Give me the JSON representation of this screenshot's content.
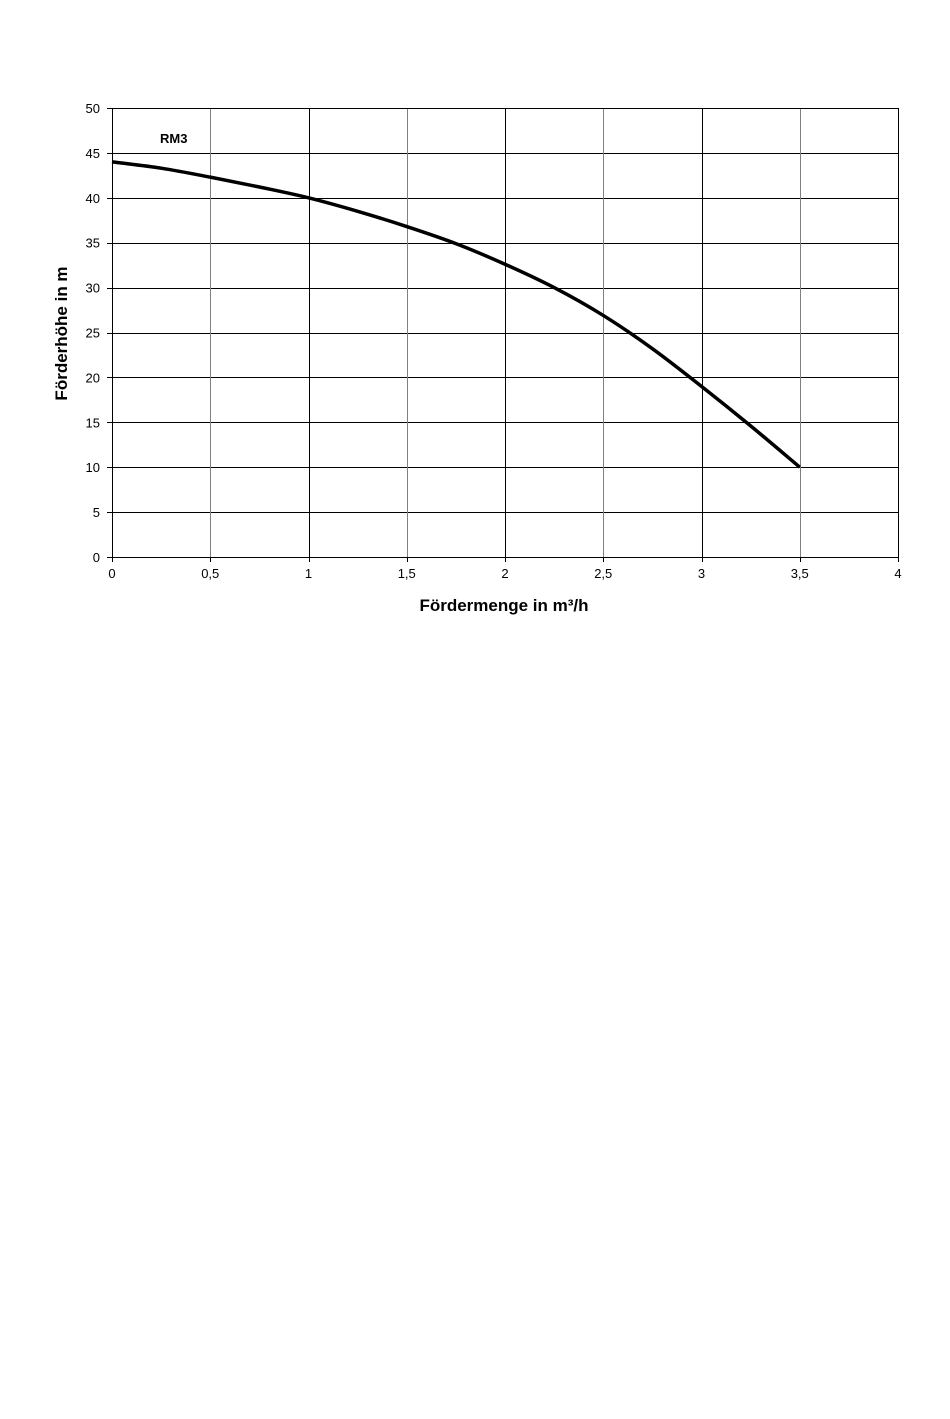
{
  "chart_data": {
    "type": "line",
    "title": "",
    "xlabel": "Fördermenge in m³/h",
    "ylabel": "Förderhöhe in m",
    "xlim": [
      0,
      4
    ],
    "ylim": [
      0,
      50
    ],
    "x_ticks": [
      "0",
      "0,5",
      "1",
      "1,5",
      "2",
      "2,5",
      "3",
      "3,5",
      "4"
    ],
    "y_ticks": [
      "0",
      "5",
      "10",
      "15",
      "20",
      "25",
      "30",
      "35",
      "40",
      "45",
      "50"
    ],
    "grid": true,
    "colors": {
      "line": "#000000",
      "grid": "#000000",
      "minor_grid": "#808080"
    },
    "series": [
      {
        "name": "RM3",
        "x": [
          0,
          0.25,
          0.5,
          0.75,
          1.0,
          1.25,
          1.5,
          1.75,
          2.0,
          2.25,
          2.5,
          2.75,
          3.0,
          3.25,
          3.5
        ],
        "y": [
          44,
          43.3,
          42.3,
          41.2,
          40.0,
          38.5,
          36.8,
          34.9,
          32.6,
          30.0,
          26.9,
          23.2,
          19.0,
          14.6,
          10.0
        ]
      }
    ]
  }
}
